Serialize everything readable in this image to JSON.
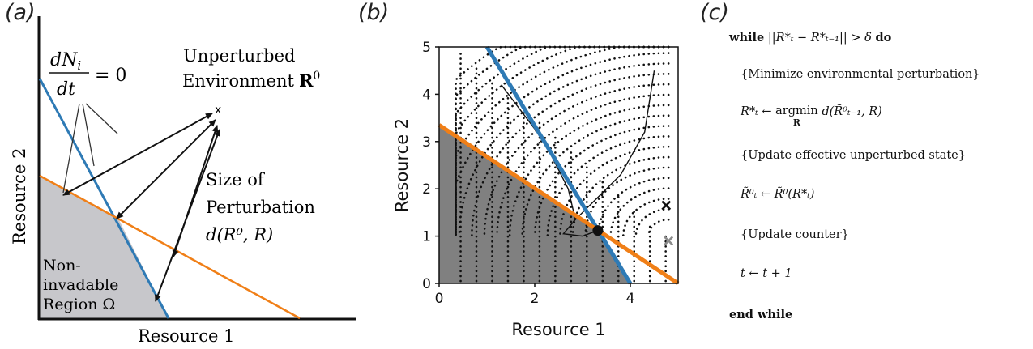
{
  "panels": {
    "a": {
      "label": "(a)",
      "xlabel": "Resource 1",
      "ylabel": "Resource 2",
      "zngi_label": "= 0",
      "zngi_frac_num": "dN",
      "zngi_frac_num_sub": "i",
      "zngi_frac_den": "dt",
      "env_label_1": "Unperturbed",
      "env_label_2": "Environment",
      "env_symbol": "R",
      "env_symbol_sup": "0",
      "env_marker": "x",
      "pert_label_1": "Size of",
      "pert_label_2": "Perturbation",
      "pert_label_3": "d(R⁰, R)",
      "region_label_1": "Non-",
      "region_label_2": "invadable",
      "region_label_3": "Region Ω"
    },
    "b": {
      "label": "(b)"
    },
    "c": {
      "label": "(c)",
      "algorithm": {
        "while_kw": "while",
        "while_cond": "||R*ₜ − R*ₜ₋₁|| > δ",
        "do_kw": "do",
        "comment1": "{Minimize environmental perturbation}",
        "step1_lhs": "R*ₜ ←",
        "step1_op": "argmin",
        "step1_sub": "R",
        "step1_rhs": "d(R̃⁰ₜ₋₁, R)",
        "comment2": "{Update effective unperturbed state}",
        "step2": "R̃⁰ₜ ← R̃⁰(R*ₜ)",
        "comment3": "{Update counter}",
        "step3": "t ← t + 1",
        "end_kw": "end while"
      }
    }
  },
  "colors": {
    "zngi_blue": "#2e7ab5",
    "zngi_orange": "#f07f17",
    "region_a": "#c7c7cb",
    "region_b": "#808080",
    "marker_gray": "#8a8a8a"
  },
  "chart_data": {
    "type": "scatter",
    "xlabel": "Resource 1",
    "ylabel": "Resource 2",
    "xlim": [
      0,
      5
    ],
    "ylim": [
      0,
      5
    ],
    "xticks": [
      0,
      2,
      4
    ],
    "yticks": [
      0,
      1,
      2,
      3,
      4,
      5
    ],
    "lines": [
      {
        "color": "#2e7ab5",
        "x": [
          1.0,
          4.0
        ],
        "y": [
          5.0,
          0.0
        ]
      },
      {
        "color": "#f07f17",
        "x": [
          0.0,
          5.0
        ],
        "y": [
          3.35,
          0.0
        ]
      }
    ],
    "equilibrium": {
      "x": 3.32,
      "y": 1.12
    },
    "black_cross": {
      "x": 4.75,
      "y": 1.65
    },
    "gray_cross": {
      "x": 4.8,
      "y": 0.9
    },
    "grid": false
  }
}
